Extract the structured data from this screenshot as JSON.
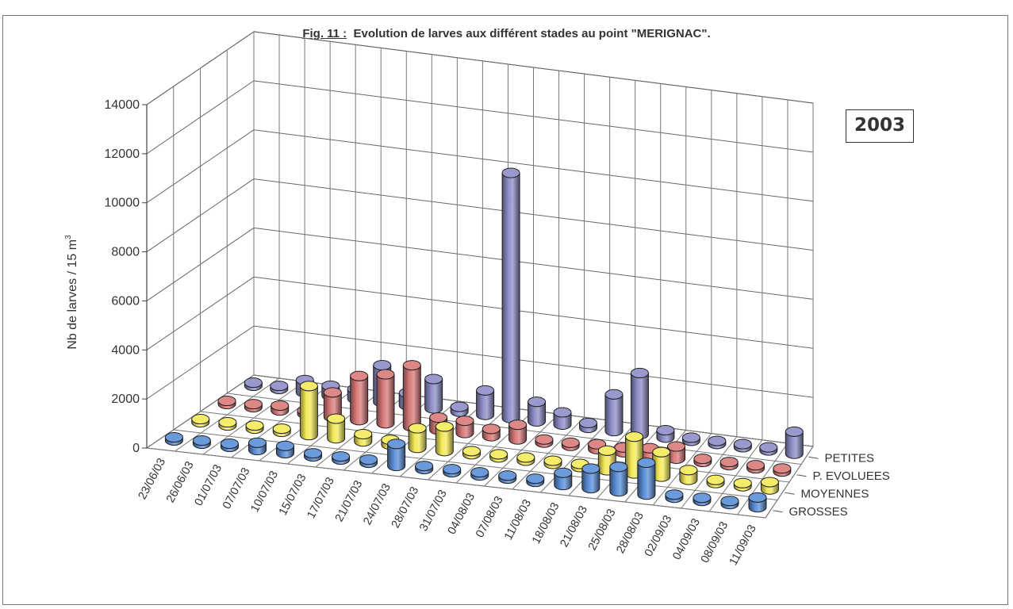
{
  "figure": {
    "title_prefix": "Fig. 11 :",
    "title_text": "Evolution de larves aux différent stades au point \"MERIGNAC\".",
    "year_badge": "2003"
  },
  "chart_data": {
    "type": "bar",
    "variant": "3d-cylinder",
    "title": "Fig. 11 : Evolution de larves aux différent stades au point \"MERIGNAC\".",
    "ylabel": "Nb de larves / 15 m³",
    "ylabel_parts": [
      "Nb de larves / 15 m",
      "3"
    ],
    "ylim": [
      0,
      14000
    ],
    "yticks": [
      0,
      2000,
      4000,
      6000,
      8000,
      10000,
      12000,
      14000
    ],
    "grid": true,
    "categories": [
      "23/06/03",
      "26/06/03",
      "01/07/03",
      "07/07/03",
      "10/07/03",
      "15/07/03",
      "17/07/03",
      "21/07/03",
      "24/07/03",
      "28/07/03",
      "31/07/03",
      "04/08/03",
      "07/08/03",
      "11/08/03",
      "18/08/03",
      "21/08/03",
      "25/08/03",
      "28/08/03",
      "02/09/03",
      "04/09/03",
      "08/09/03",
      "11/09/03"
    ],
    "series": [
      {
        "name": "GROSSES",
        "color": "#5b8fd8",
        "values": [
          0,
          0,
          0,
          300,
          300,
          0,
          0,
          0,
          900,
          0,
          0,
          0,
          0,
          0,
          500,
          800,
          1000,
          1300,
          0,
          0,
          0,
          400
        ]
      },
      {
        "name": "MOYENNES",
        "color": "#f4ea5a",
        "values": [
          0,
          0,
          0,
          0,
          2000,
          800,
          300,
          200,
          800,
          1000,
          0,
          0,
          0,
          0,
          0,
          800,
          1500,
          1000,
          400,
          0,
          0,
          300
        ]
      },
      {
        "name": "P. EVOLUEES",
        "color": "#d97a7a",
        "values": [
          0,
          0,
          200,
          0,
          1000,
          1800,
          2000,
          2500,
          500,
          500,
          300,
          600,
          0,
          0,
          200,
          200,
          300,
          500,
          0,
          0,
          0,
          0
        ]
      },
      {
        "name": "PETITES",
        "color": "#8e8ec8",
        "values": [
          0,
          0,
          500,
          400,
          400,
          1500,
          500,
          1200,
          200,
          1000,
          10000,
          800,
          500,
          200,
          1500,
          2500,
          300,
          0,
          0,
          0,
          0,
          900
        ]
      }
    ]
  }
}
